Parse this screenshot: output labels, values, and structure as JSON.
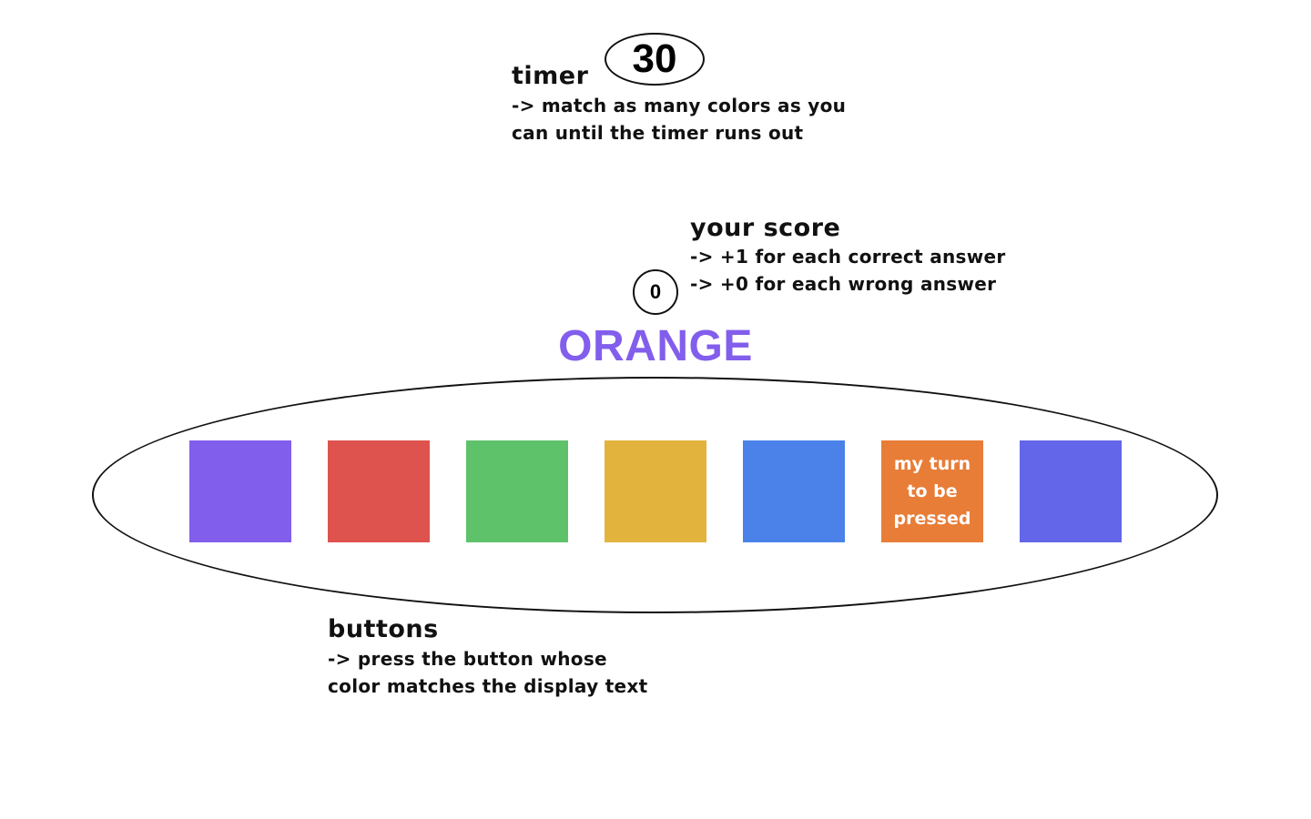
{
  "timer": {
    "title": "timer",
    "value": "30",
    "description_line1": "-> match as many colors as you",
    "description_line2": "can until the timer runs out"
  },
  "score": {
    "title": "your score",
    "value": "0",
    "description_line1": "-> +1 for each correct answer",
    "description_line2": "-> +0 for each wrong answer"
  },
  "display": {
    "word": "ORANGE",
    "word_color": "#825EEC"
  },
  "buttons": {
    "title": "buttons",
    "description_line1": "-> press the button whose",
    "description_line2": "color matches the display text",
    "items": [
      {
        "color": "#825EEC",
        "label": ""
      },
      {
        "color": "#DE534E",
        "label": ""
      },
      {
        "color": "#5EC26A",
        "label": ""
      },
      {
        "color": "#E2B43E",
        "label": ""
      },
      {
        "color": "#4B82EA",
        "label": ""
      },
      {
        "color": "#E87D37",
        "label": "my turn\nto be\npressed"
      },
      {
        "color": "#6366E8",
        "label": ""
      }
    ]
  }
}
